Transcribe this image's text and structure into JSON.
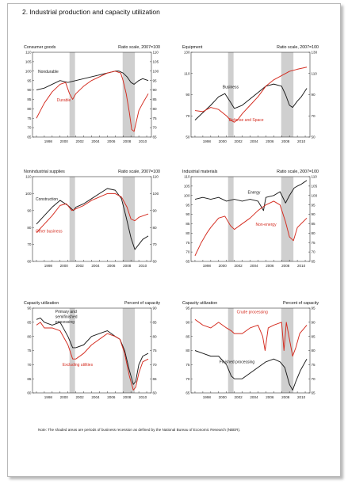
{
  "page": {
    "title": "2.  Industrial production and capacity utilization",
    "note": "Note: The shaded areas are periods of business recession as defined by the National Bureau of Economic Research (NBER)."
  },
  "colors": {
    "black": "#1a1a1a",
    "red": "#d42a1e",
    "shade": "#cfcfcf"
  },
  "recessions": [
    [
      2001.2,
      2001.9
    ],
    [
      2007.95,
      2009.5
    ]
  ],
  "chart_data": [
    {
      "id": "consumer",
      "type": "line",
      "title": "Consumer goods",
      "scale_note": "Ratio scale, 2007=100",
      "xlim": [
        1996.5,
        2011.6
      ],
      "xticks": [
        "1998",
        "2000",
        "2002",
        "2004",
        "2006",
        "2008",
        "2010"
      ],
      "ylim": [
        65,
        110
      ],
      "yticks": [
        65,
        70,
        75,
        80,
        85,
        90,
        95,
        100,
        105,
        110
      ],
      "series": [
        {
          "name": "Nondurable",
          "color": "black",
          "x": [
            1997,
            1998,
            1999,
            2000,
            2001,
            2002,
            2003,
            2004,
            2005,
            2006,
            2007,
            2007.5,
            2008,
            2008.5,
            2009,
            2009.4,
            2010,
            2010.5,
            2011.2
          ],
          "y": [
            90,
            91,
            93,
            95,
            94,
            95,
            96,
            97,
            98,
            99,
            100,
            100,
            99,
            97,
            94,
            93,
            95,
            96,
            95
          ]
        },
        {
          "name": "Durable",
          "color": "red",
          "x": [
            1997,
            1997.5,
            1998,
            1998.5,
            1999,
            2000,
            2000.7,
            2001.2,
            2001.6,
            2002,
            2003,
            2004,
            2005,
            2006,
            2007,
            2007.7,
            2008,
            2008.4,
            2008.8,
            2009.1,
            2009.4,
            2010,
            2010.5,
            2011.2
          ],
          "y": [
            75,
            79,
            83,
            86,
            89,
            93,
            94,
            88,
            85,
            88,
            92,
            95,
            97,
            99,
            100,
            99,
            95,
            88,
            78,
            69,
            68,
            79,
            83,
            88
          ]
        }
      ],
      "labels": [
        {
          "text": "Nondurable",
          "color": "black",
          "x": 1997.2,
          "y": 99
        },
        {
          "text": "Durable",
          "color": "red",
          "x": 1999.6,
          "y": 84
        }
      ]
    },
    {
      "id": "equipment",
      "type": "line",
      "title": "Equipment",
      "scale_note": "Ratio scale, 2007=100",
      "xlim": [
        1996.5,
        2011.6
      ],
      "xticks": [
        "1998",
        "2000",
        "2002",
        "2004",
        "2006",
        "2008",
        "2010"
      ],
      "ylim": [
        50,
        130
      ],
      "yticks": [
        50,
        70,
        90,
        110,
        130
      ],
      "series": [
        {
          "name": "Business",
          "color": "black",
          "x": [
            1997,
            1998,
            1999,
            2000,
            2000.8,
            2001.5,
            2002,
            2003,
            2004,
            2005,
            2006,
            2007,
            2008,
            2008.5,
            2009,
            2009.4,
            2010,
            2010.5,
            2011.2
          ],
          "y": [
            66,
            73,
            80,
            88,
            91,
            83,
            77,
            80,
            86,
            92,
            98,
            100,
            98,
            90,
            80,
            78,
            84,
            88,
            96
          ]
        },
        {
          "name": "Defense and Space",
          "color": "red",
          "x": [
            1997,
            1998,
            1999,
            2000,
            2001,
            2001.5,
            2002,
            2002.5,
            2003,
            2004,
            2005,
            2006,
            2007,
            2008,
            2009,
            2010,
            2011.2
          ],
          "y": [
            75,
            74,
            78,
            76,
            70,
            66,
            64,
            67,
            72,
            80,
            88,
            98,
            104,
            108,
            112,
            114,
            116
          ]
        }
      ],
      "labels": [
        {
          "text": "Business",
          "color": "black",
          "x": 2000.5,
          "y": 96
        },
        {
          "text": "Defense and Space",
          "color": "red",
          "x": 2001.3,
          "y": 65
        }
      ]
    },
    {
      "id": "nonindustrial",
      "type": "line",
      "title": "Nonindustrial supplies",
      "scale_note": "Ratio scale, 2007=100",
      "xlim": [
        1996.5,
        2011.6
      ],
      "xticks": [
        "1998",
        "2000",
        "2002",
        "2004",
        "2006",
        "2008",
        "2010"
      ],
      "ylim": [
        60,
        110
      ],
      "yticks": [
        60,
        70,
        80,
        90,
        100,
        110
      ],
      "series": [
        {
          "name": "Construction",
          "color": "black",
          "x": [
            1997,
            1998,
            1999,
            2000,
            2001,
            2001.7,
            2002,
            2003,
            2004,
            2005,
            2006,
            2007,
            2007.8,
            2008.4,
            2009,
            2009.5,
            2010,
            2010.5,
            2011.2
          ],
          "y": [
            82,
            87,
            92,
            96,
            93,
            90,
            92,
            94,
            97,
            100,
            103,
            102,
            97,
            86,
            74,
            67,
            70,
            73,
            75
          ]
        },
        {
          "name": "Other business",
          "color": "red",
          "x": [
            1997,
            1998,
            1999,
            2000,
            2000.8,
            2001.5,
            2002,
            2003,
            2004,
            2005,
            2006,
            2007,
            2007.8,
            2008.5,
            2009,
            2009.5,
            2010,
            2011.2
          ],
          "y": [
            77,
            82,
            87,
            93,
            94,
            90,
            91,
            93,
            96,
            98,
            100,
            100,
            98,
            92,
            85,
            84,
            86,
            88
          ]
        }
      ],
      "labels": [
        {
          "text": "Construction",
          "color": "black",
          "x": 1996.9,
          "y": 96
        },
        {
          "text": "Other business",
          "color": "red",
          "x": 1996.9,
          "y": 77
        }
      ]
    },
    {
      "id": "materials",
      "type": "line",
      "title": "Industrial materials",
      "scale_note": "Ratio scale, 2007=100",
      "xlim": [
        1996.5,
        2011.6
      ],
      "xticks": [
        "1998",
        "2000",
        "2002",
        "2004",
        "2006",
        "2008",
        "2010"
      ],
      "ylim": [
        65,
        110
      ],
      "yticks": [
        65,
        70,
        75,
        80,
        85,
        90,
        95,
        100,
        105,
        110
      ],
      "series": [
        {
          "name": "Energy",
          "color": "black",
          "x": [
            1997,
            1998,
            1999,
            2000,
            2001,
            2002,
            2003,
            2004,
            2005,
            2005.7,
            2006,
            2007,
            2007.8,
            2008.5,
            2009,
            2009.6,
            2010,
            2010.5,
            2011.2
          ],
          "y": [
            98,
            99,
            98,
            99,
            97,
            98,
            97,
            98,
            97,
            92,
            99,
            100,
            102,
            96,
            100,
            104,
            105,
            106,
            108
          ]
        },
        {
          "name": "Non-energy",
          "color": "red",
          "x": [
            1997,
            1997.8,
            1998.5,
            1999,
            2000,
            2000.8,
            2001.5,
            2002,
            2003,
            2004,
            2005,
            2006,
            2007,
            2007.8,
            2008.5,
            2009,
            2009.5,
            2010,
            2011.2
          ],
          "y": [
            68,
            75,
            80,
            83,
            88,
            89,
            84,
            82,
            85,
            88,
            92,
            95,
            97,
            95,
            86,
            78,
            76,
            83,
            88
          ]
        }
      ],
      "labels": [
        {
          "text": "Energy",
          "color": "black",
          "x": 2003.7,
          "y": 101
        },
        {
          "text": "Non-energy",
          "color": "red",
          "x": 2004.7,
          "y": 84
        }
      ]
    },
    {
      "id": "capacity-stage",
      "type": "line",
      "title": "Capacity utilization",
      "scale_note": "Percent of capacity",
      "xlim": [
        1996.5,
        2011.6
      ],
      "xticks": [
        "1998",
        "2000",
        "2002",
        "2004",
        "2006",
        "2008",
        "2010"
      ],
      "ylim": [
        60,
        90
      ],
      "yticks": [
        60,
        65,
        70,
        75,
        80,
        85,
        90
      ],
      "series": [
        {
          "name": "Primary and semifinished processing",
          "color": "black",
          "x": [
            1997,
            1997.5,
            1998,
            1999,
            2000,
            2001,
            2001.6,
            2002,
            2003,
            2004,
            2005,
            2006,
            2007,
            2007.6,
            2008.2,
            2008.8,
            2009.3,
            2009.6,
            2010,
            2010.5,
            2011.2
          ],
          "y": [
            86,
            86.5,
            85,
            84,
            85,
            80,
            76,
            76,
            77,
            80,
            81,
            82,
            80,
            79,
            75,
            68,
            63,
            64,
            70,
            73,
            74
          ]
        },
        {
          "name": "Excluding utilities",
          "color": "red",
          "x": [
            1997,
            1997.5,
            1998,
            1999,
            2000,
            2001,
            2001.6,
            2002,
            2003,
            2004,
            2005,
            2006,
            2007,
            2007.6,
            2008.2,
            2008.8,
            2009.3,
            2009.6,
            2010,
            2010.5,
            2011.2
          ],
          "y": [
            84,
            85,
            83,
            83,
            82,
            77,
            72,
            72,
            74,
            77,
            79,
            81,
            80,
            79,
            74,
            66,
            61,
            62,
            67,
            71,
            72
          ]
        }
      ],
      "labels": [
        {
          "text": "Primary and",
          "color": "black",
          "x": 1999.4,
          "y": 88.3
        },
        {
          "text": "semifinished",
          "color": "black",
          "x": 1999.4,
          "y": 86.5
        },
        {
          "text": "processing",
          "color": "black",
          "x": 1999.4,
          "y": 84.7
        },
        {
          "text": "Excluding utilities",
          "color": "red",
          "x": 2000.3,
          "y": 69.5
        }
      ]
    },
    {
      "id": "capacity-processing",
      "type": "line",
      "title": "Capacity utilization",
      "scale_note": "Percent of capacity",
      "xlim": [
        1996.5,
        2011.6
      ],
      "xticks": [
        "1998",
        "2000",
        "2002",
        "2004",
        "2006",
        "2008",
        "2010"
      ],
      "ylim": [
        65,
        95
      ],
      "yticks": [
        65,
        70,
        75,
        80,
        85,
        90,
        95
      ],
      "series": [
        {
          "name": "Crude processing",
          "color": "red",
          "x": [
            1997,
            1998,
            1999,
            2000,
            2001,
            2001.6,
            2002,
            2003,
            2004,
            2005,
            2005.6,
            2005.9,
            2006.3,
            2007,
            2008,
            2008.3,
            2008.6,
            2009,
            2009.4,
            2009.8,
            2010.3,
            2011.2
          ],
          "y": [
            91,
            89,
            88,
            90,
            88,
            87,
            86,
            86,
            88,
            89,
            85,
            80,
            88,
            89,
            90,
            80,
            90,
            84,
            78,
            81,
            86,
            89
          ]
        },
        {
          "name": "Finished processing",
          "color": "black",
          "x": [
            1997,
            1998,
            1999,
            2000,
            2001,
            2001.6,
            2002,
            2003,
            2004,
            2005,
            2006,
            2007,
            2007.8,
            2008.4,
            2009,
            2009.4,
            2009.8,
            2010.4,
            2011.2
          ],
          "y": [
            80,
            79,
            78,
            78,
            75,
            71,
            70,
            70,
            72,
            74,
            76,
            77,
            76,
            74,
            68,
            66,
            69,
            73,
            77
          ]
        }
      ],
      "labels": [
        {
          "text": "Crude processing",
          "color": "red",
          "x": 2002.3,
          "y": 93.2
        },
        {
          "text": "Finished processing",
          "color": "black",
          "x": 2000.1,
          "y": 75.5
        }
      ]
    }
  ]
}
